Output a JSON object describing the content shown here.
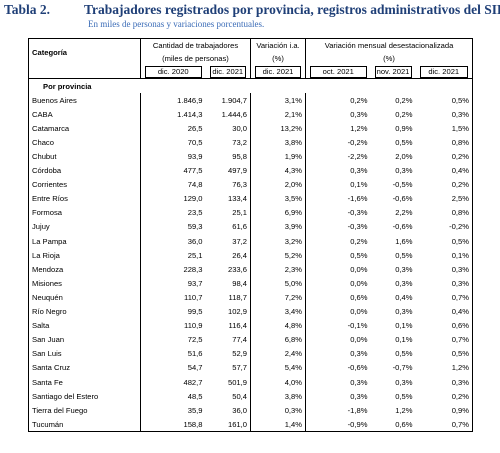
{
  "header": {
    "label": "Tabla 2.",
    "title": "Trabajadores registrados por provincia, registros administrativos del SIPA.",
    "subtitle": "En miles de personas y variaciones porcentuales."
  },
  "table": {
    "category_header": "Categoría",
    "groups": [
      {
        "title": "Cantidad de trabajadores",
        "unit": "(miles de personas)",
        "periods": [
          "dic. 2020",
          "dic. 2021"
        ]
      },
      {
        "title": "Variación i.a.",
        "unit": "(%)",
        "periods": [
          "dic. 2021"
        ]
      },
      {
        "title": "Variación mensual desestacionalizada",
        "unit": "(%)",
        "periods": [
          "oct. 2021",
          "nov. 2021",
          "dic. 2021"
        ]
      }
    ],
    "section": "Por provincia",
    "rows": [
      [
        "Buenos Aires",
        "1.846,9",
        "1.904,7",
        "3,1%",
        "0,2%",
        "0,2%",
        "0,5%"
      ],
      [
        "CABA",
        "1.414,3",
        "1.444,6",
        "2,1%",
        "0,3%",
        "0,2%",
        "0,3%"
      ],
      [
        "Catamarca",
        "26,5",
        "30,0",
        "13,2%",
        "1,2%",
        "0,9%",
        "1,5%"
      ],
      [
        "Chaco",
        "70,5",
        "73,2",
        "3,8%",
        "-0,2%",
        "0,5%",
        "0,8%"
      ],
      [
        "Chubut",
        "93,9",
        "95,8",
        "1,9%",
        "-2,2%",
        "2,0%",
        "0,2%"
      ],
      [
        "Córdoba",
        "477,5",
        "497,9",
        "4,3%",
        "0,3%",
        "0,3%",
        "0,4%"
      ],
      [
        "Corrientes",
        "74,8",
        "76,3",
        "2,0%",
        "0,1%",
        "-0,5%",
        "0,2%"
      ],
      [
        "Entre Ríos",
        "129,0",
        "133,4",
        "3,5%",
        "-1,6%",
        "-0,6%",
        "2,5%"
      ],
      [
        "Formosa",
        "23,5",
        "25,1",
        "6,9%",
        "-0,3%",
        "2,2%",
        "0,8%"
      ],
      [
        "Jujuy",
        "59,3",
        "61,6",
        "3,9%",
        "-0,3%",
        "-0,6%",
        "-0,2%"
      ],
      [
        "La Pampa",
        "36,0",
        "37,2",
        "3,2%",
        "0,2%",
        "1,6%",
        "0,5%"
      ],
      [
        "La Rioja",
        "25,1",
        "26,4",
        "5,2%",
        "0,5%",
        "0,5%",
        "0,1%"
      ],
      [
        "Mendoza",
        "228,3",
        "233,6",
        "2,3%",
        "0,0%",
        "0,3%",
        "0,3%"
      ],
      [
        "Misiones",
        "93,7",
        "98,4",
        "5,0%",
        "0,0%",
        "0,3%",
        "0,3%"
      ],
      [
        "Neuquén",
        "110,7",
        "118,7",
        "7,2%",
        "0,6%",
        "0,4%",
        "0,7%"
      ],
      [
        "Río Negro",
        "99,5",
        "102,9",
        "3,4%",
        "0,0%",
        "0,3%",
        "0,4%"
      ],
      [
        "Salta",
        "110,9",
        "116,4",
        "4,8%",
        "-0,1%",
        "0,1%",
        "0,6%"
      ],
      [
        "San Juan",
        "72,5",
        "77,4",
        "6,8%",
        "0,0%",
        "0,1%",
        "0,7%"
      ],
      [
        "San Luis",
        "51,6",
        "52,9",
        "2,4%",
        "0,3%",
        "0,5%",
        "0,5%"
      ],
      [
        "Santa Cruz",
        "54,7",
        "57,7",
        "5,4%",
        "-0,6%",
        "-0,7%",
        "1,2%"
      ],
      [
        "Santa Fe",
        "482,7",
        "501,9",
        "4,0%",
        "0,3%",
        "0,3%",
        "0,3%"
      ],
      [
        "Santiago del Estero",
        "48,5",
        "50,4",
        "3,8%",
        "0,3%",
        "0,5%",
        "0,2%"
      ],
      [
        "Tierra del Fuego",
        "35,9",
        "36,0",
        "0,3%",
        "-1,8%",
        "1,2%",
        "0,9%"
      ],
      [
        "Tucumán",
        "158,8",
        "161,0",
        "1,4%",
        "-0,9%",
        "0,6%",
        "0,7%"
      ]
    ]
  }
}
